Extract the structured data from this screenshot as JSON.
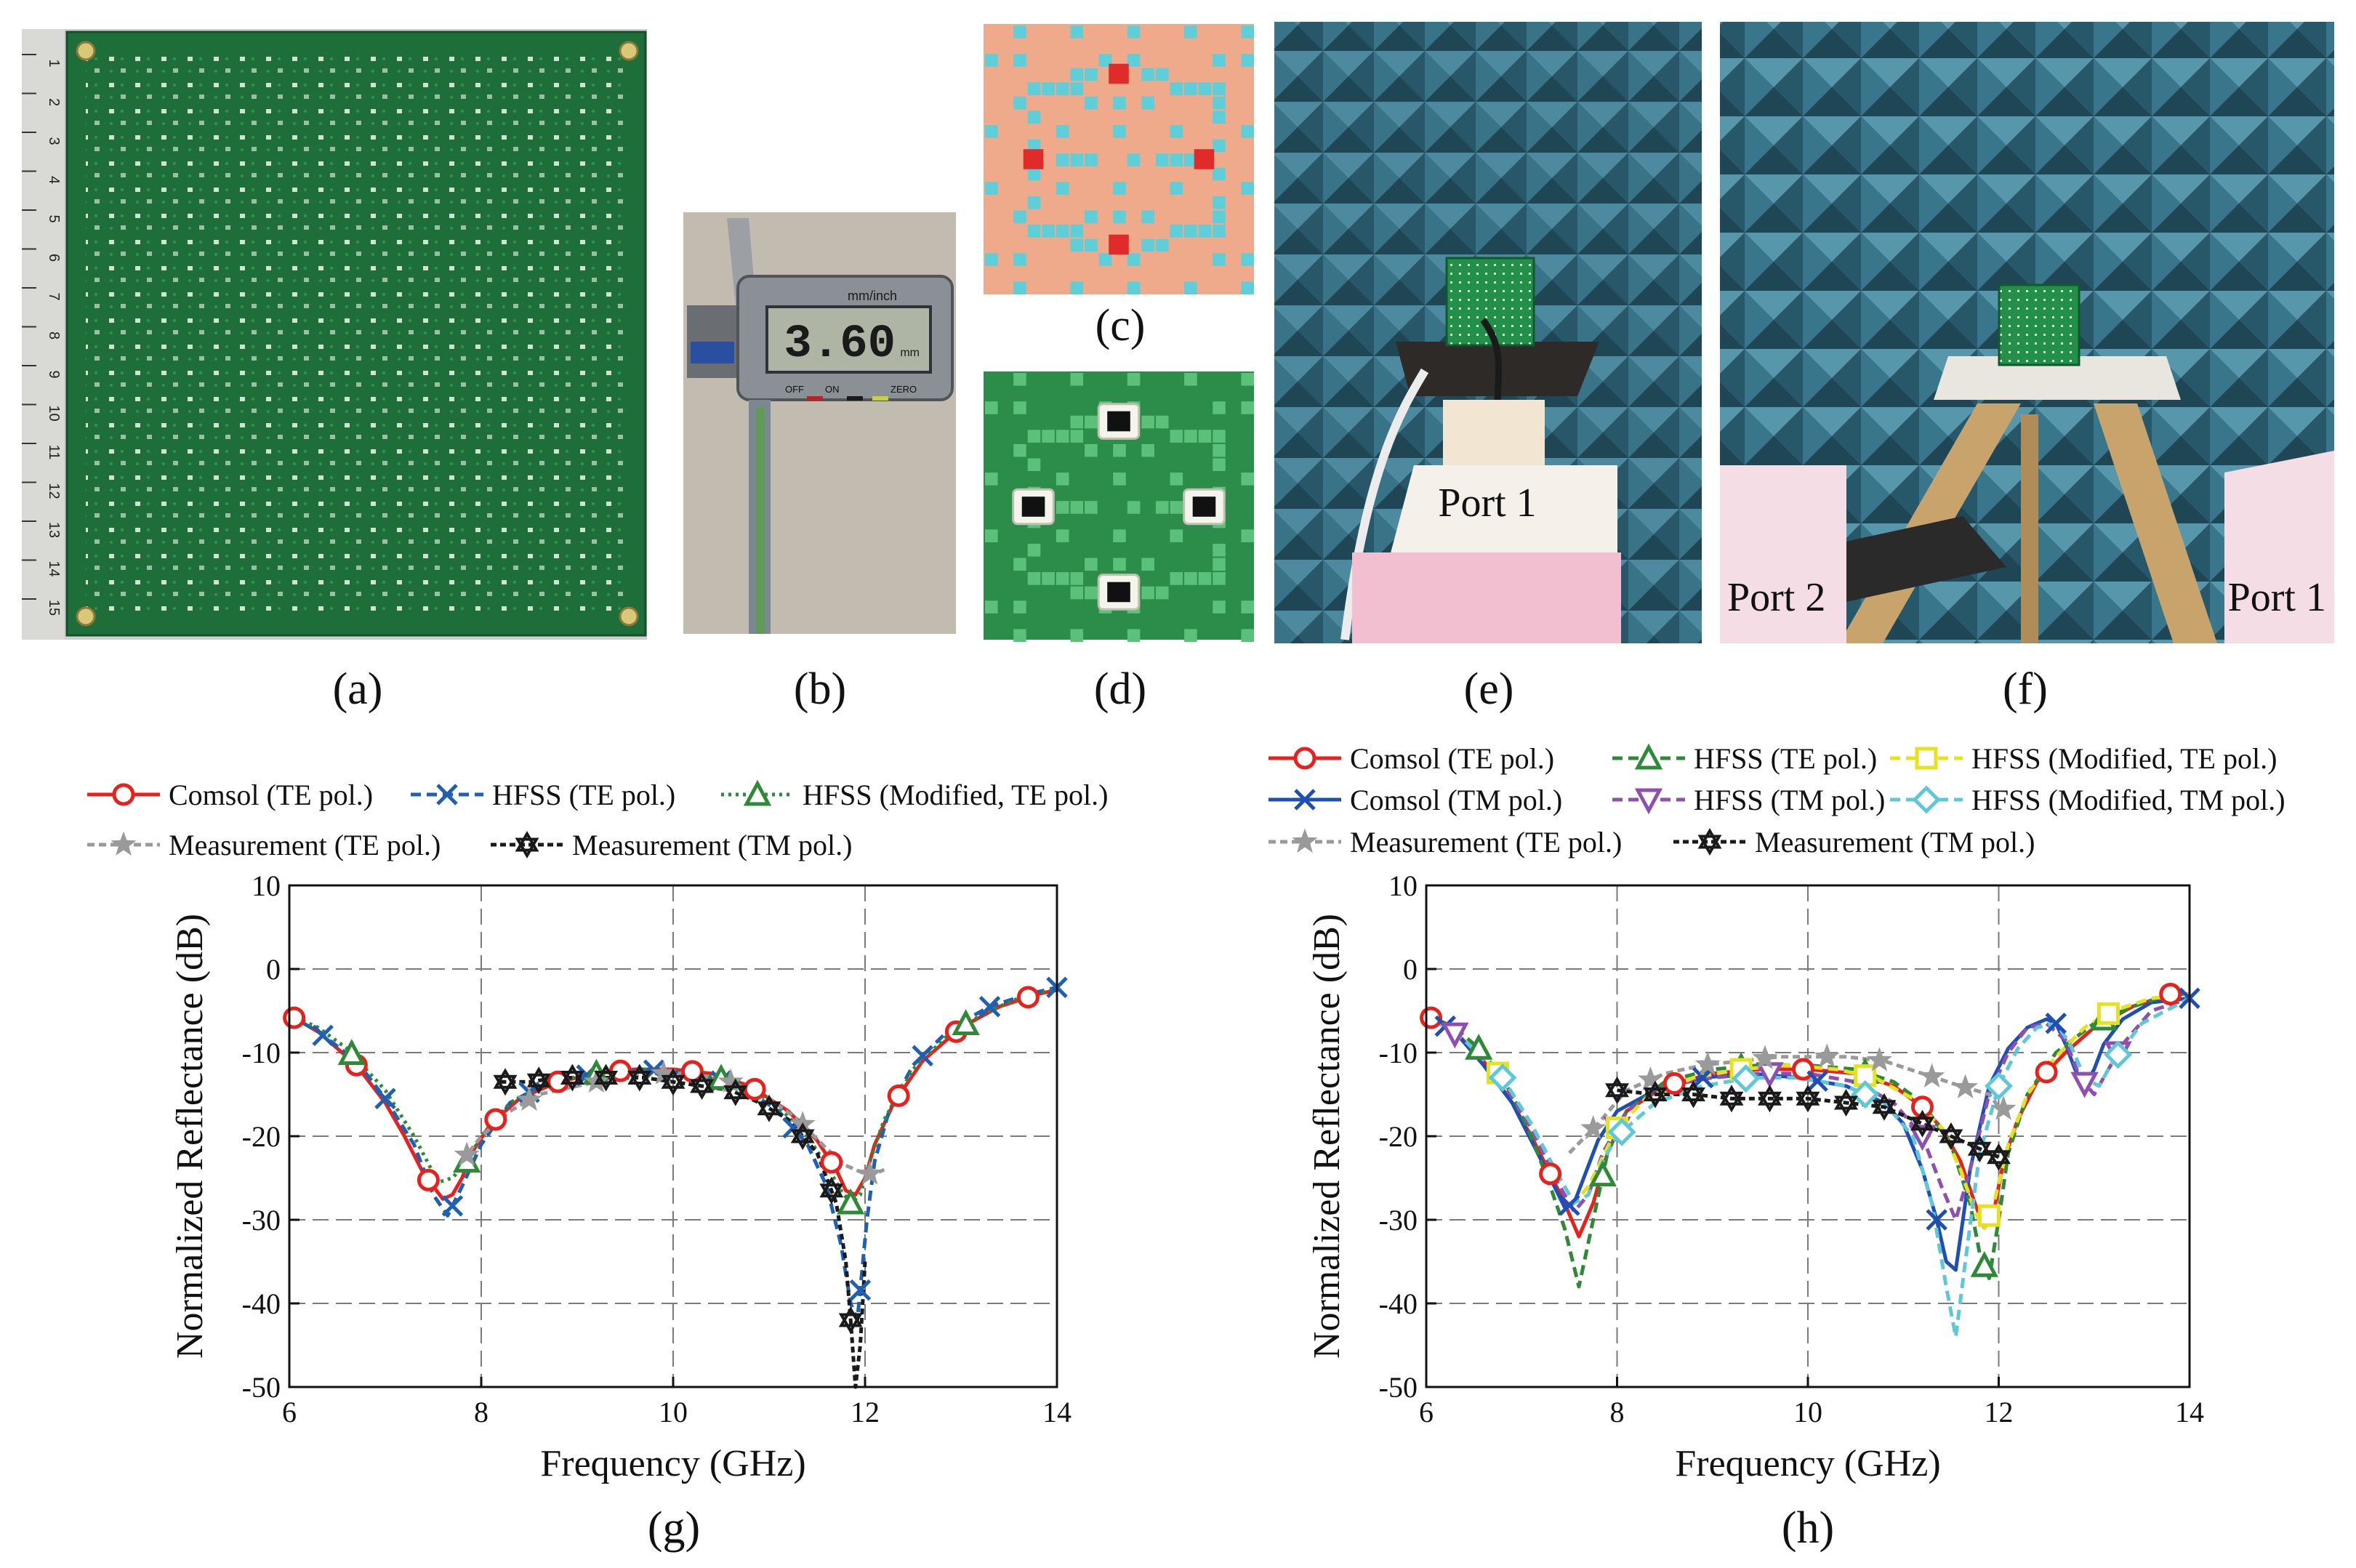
{
  "panels": {
    "a": "(a)",
    "b": "(b)",
    "c": "(c)",
    "d": "(d)",
    "e": "(e)",
    "f": "(f)",
    "g": "(g)",
    "h": "(h)"
  },
  "photos": {
    "caliper_brand": "mm/inch",
    "caliper_reading": "3.60",
    "caliper_unit": "mm",
    "caliper_off": "OFF",
    "caliper_on": "ON",
    "caliper_zero": "ZERO",
    "ruler_ticks": [
      "1",
      "2",
      "3",
      "4",
      "5",
      "6",
      "7",
      "8",
      "9",
      "10",
      "11",
      "12",
      "13",
      "14",
      "15"
    ],
    "port_e": "Port 1",
    "port_f_left": "Port 2",
    "port_f_right": "Port 1"
  },
  "colors": {
    "comsol_te": "#e8211c",
    "comsol_tm": "#1f4fb4",
    "hfss_te": "#2e8a36",
    "hfss_tm": "#8e4fb0",
    "hfss_mod_te": "#e6e21e",
    "hfss_mod_tm": "#5dc9d8",
    "meas_te": "#9a9a9a",
    "meas_tm": "#1a1a1a",
    "hfss_te_g": "#1f5fb4",
    "pcb_green": "#1e6e3a",
    "anechoic": "#3f7f97"
  },
  "chart_data": [
    {
      "id": "g",
      "type": "line",
      "xlabel": "Frequency (GHz)",
      "ylabel": "Normalized Reflectance (dB)",
      "xlim": [
        6,
        14
      ],
      "ylim": [
        -50,
        10
      ],
      "xticks": [
        6,
        8,
        10,
        12,
        14
      ],
      "yticks": [
        10,
        0,
        -10,
        -20,
        -30,
        -40,
        -50
      ],
      "grid": true,
      "legend": [
        "Comsol (TE pol.)",
        "HFSS (TE pol.)",
        "HFSS (Modified, TE pol.)",
        "Measurement (TE pol.)",
        "Measurement (TM pol.)"
      ],
      "series": [
        {
          "name": "Comsol (TE pol.)",
          "color": "#e8211c",
          "dash": "",
          "marker": "circle",
          "x": [
            6.0,
            6.3,
            6.7,
            7.0,
            7.2,
            7.4,
            7.6,
            7.7,
            7.8,
            7.9,
            8.1,
            8.4,
            8.8,
            9.2,
            9.6,
            10.0,
            10.4,
            10.8,
            11.2,
            11.5,
            11.7,
            11.8,
            11.9,
            12.0,
            12.1,
            12.3,
            12.6,
            13.0,
            13.4,
            13.8,
            14.0
          ],
          "y": [
            -5.5,
            -7.5,
            -11.5,
            -16,
            -20,
            -24.5,
            -27.5,
            -27,
            -25,
            -22,
            -18.5,
            -15.5,
            -13.5,
            -12.5,
            -12,
            -12,
            -12.5,
            -14,
            -17,
            -20.5,
            -24,
            -26.5,
            -27,
            -25,
            -21,
            -16,
            -11,
            -7,
            -4.5,
            -3,
            -2.5
          ],
          "marker_x": [
            6.05,
            6.7,
            7.45,
            8.15,
            8.8,
            9.45,
            10.2,
            10.85,
            11.65,
            12.35,
            12.95,
            13.7
          ]
        },
        {
          "name": "HFSS (TE pol.)",
          "color": "#1f5fb4",
          "dash": "14,8",
          "marker": "x",
          "x": [
            6.0,
            6.3,
            6.7,
            7.0,
            7.3,
            7.5,
            7.65,
            7.8,
            8.0,
            8.3,
            8.7,
            9.2,
            9.7,
            10.2,
            10.7,
            11.1,
            11.4,
            11.6,
            11.75,
            11.85,
            11.92,
            11.97,
            12.02,
            12.1,
            12.25,
            12.5,
            12.9,
            13.3,
            13.7,
            14.0
          ],
          "y": [
            -5.5,
            -7.5,
            -11,
            -15.5,
            -21,
            -27,
            -29.5,
            -26,
            -21,
            -16,
            -13.5,
            -12.5,
            -12,
            -12.5,
            -14,
            -17,
            -21,
            -26,
            -33,
            -40,
            -42,
            -36,
            -30,
            -23,
            -17,
            -11.5,
            -7,
            -4.5,
            -3,
            -2.2
          ],
          "marker_x": [
            6.35,
            7.0,
            7.7,
            8.5,
            9.1,
            9.8,
            10.5,
            11.25,
            11.95,
            12.6,
            13.3,
            14.0
          ]
        },
        {
          "name": "HFSS (Modified, TE pol.)",
          "color": "#2e8a36",
          "dash": "4,6",
          "marker": "triangle",
          "x": [
            6.0,
            6.3,
            6.6,
            7.0,
            7.3,
            7.55,
            7.7,
            7.85,
            8.0,
            8.3,
            8.7,
            9.2,
            9.7,
            10.2,
            10.7,
            11.1,
            11.4,
            11.6,
            11.75,
            11.85,
            11.95,
            12.05,
            12.2,
            12.5,
            12.9,
            13.3,
            13.7,
            14.0
          ],
          "y": [
            -5.5,
            -7,
            -9.5,
            -14.5,
            -20,
            -25.5,
            -25,
            -23,
            -20,
            -16,
            -13.5,
            -12.5,
            -12,
            -12.5,
            -13.5,
            -16.5,
            -20,
            -23.5,
            -26.5,
            -28,
            -27,
            -23,
            -18,
            -12,
            -7.5,
            -5,
            -3,
            -2.5
          ],
          "marker_x": [
            6.65,
            7.85,
            9.2,
            10.5,
            11.85,
            13.05
          ]
        },
        {
          "name": "Measurement (TE pol.)",
          "color": "#9a9a9a",
          "dash": "10,6",
          "marker": "star",
          "x": [
            7.8,
            8.0,
            8.3,
            8.6,
            9.0,
            9.4,
            9.8,
            10.2,
            10.6,
            11.0,
            11.3,
            11.6,
            11.8,
            11.9,
            12.0,
            12.1,
            12.2
          ],
          "y": [
            -23,
            -20,
            -17,
            -15,
            -14,
            -13,
            -12.5,
            -12.5,
            -13.5,
            -15.5,
            -18,
            -21.5,
            -23.5,
            -24,
            -24.5,
            -24.5,
            -24
          ],
          "marker_x": [
            7.85,
            8.5,
            9.2,
            9.9,
            10.6,
            11.35,
            12.05
          ]
        },
        {
          "name": "Measurement (TM pol.)",
          "color": "#1a1a1a",
          "dash": "8,5",
          "marker": "star6",
          "x": [
            8.2,
            8.5,
            8.8,
            9.1,
            9.4,
            9.7,
            10.0,
            10.3,
            10.6,
            10.9,
            11.2,
            11.5,
            11.7,
            11.8,
            11.85,
            11.9,
            11.95,
            12.0
          ],
          "y": [
            -13.5,
            -13.5,
            -13,
            -13,
            -13,
            -13,
            -13.5,
            -14,
            -14.5,
            -16,
            -18,
            -22,
            -28,
            -35,
            -42,
            -50,
            -45,
            -35
          ],
          "marker_x": [
            8.25,
            8.6,
            8.95,
            9.3,
            9.65,
            10.0,
            10.3,
            10.65,
            11.0,
            11.35,
            11.65,
            11.85
          ]
        }
      ]
    },
    {
      "id": "h",
      "type": "line",
      "xlabel": "Frequency (GHz)",
      "ylabel": "Normalized Reflectance (dB)",
      "xlim": [
        6,
        14
      ],
      "ylim": [
        -50,
        10
      ],
      "xticks": [
        6,
        8,
        10,
        12,
        14
      ],
      "yticks": [
        10,
        0,
        -10,
        -20,
        -30,
        -40,
        -50
      ],
      "grid": true,
      "legend": [
        "Comsol (TE pol.)",
        "HFSS (TE pol.)",
        "HFSS (Modified, TE pol.)",
        "Comsol (TM pol.)",
        "HFSS (TM pol.)",
        "HFSS (Modified, TM pol.)",
        "Measurement (TE pol.)",
        "Measurement (TM pol.)"
      ],
      "series": [
        {
          "name": "Comsol (TE pol.)",
          "color": "#e8211c",
          "dash": "",
          "marker": "circle",
          "x": [
            6.0,
            6.3,
            6.6,
            6.9,
            7.1,
            7.3,
            7.45,
            7.6,
            7.75,
            7.9,
            8.1,
            8.5,
            9.0,
            9.5,
            10.0,
            10.5,
            10.9,
            11.2,
            11.4,
            11.6,
            11.75,
            11.85,
            11.95,
            12.05,
            12.2,
            12.4,
            12.7,
            13.0,
            13.4,
            13.8,
            14.0
          ],
          "y": [
            -5.5,
            -7.5,
            -11,
            -16,
            -20,
            -24.5,
            -28,
            -32,
            -28,
            -22,
            -17,
            -14,
            -12.5,
            -12,
            -12,
            -12.5,
            -14,
            -16.5,
            -19,
            -23,
            -28,
            -31,
            -29,
            -23,
            -18,
            -13.5,
            -10,
            -7,
            -4.5,
            -3,
            -3
          ],
          "marker_x": [
            6.05,
            7.3,
            8.6,
            9.95,
            11.2,
            12.5,
            13.8
          ]
        },
        {
          "name": "Comsol (TM pol.)",
          "color": "#1f4fb4",
          "dash": "",
          "marker": "x",
          "x": [
            6.0,
            6.3,
            6.6,
            6.9,
            7.1,
            7.3,
            7.45,
            7.55,
            7.65,
            7.8,
            8.0,
            8.4,
            8.9,
            9.4,
            9.9,
            10.4,
            10.8,
            11.0,
            11.2,
            11.35,
            11.45,
            11.55,
            11.7,
            11.9,
            12.1,
            12.3,
            12.5,
            12.6,
            12.7,
            12.8,
            12.9,
            13.0,
            13.1,
            13.3,
            13.6,
            14.0
          ],
          "y": [
            -5.5,
            -7.5,
            -11.5,
            -16,
            -20.5,
            -25,
            -28.5,
            -28,
            -25,
            -20.5,
            -17,
            -14.5,
            -13,
            -12.5,
            -13,
            -14,
            -16,
            -18.5,
            -24,
            -30,
            -35,
            -36,
            -24,
            -14,
            -9.5,
            -7,
            -6,
            -6.5,
            -9,
            -12,
            -14,
            -12,
            -9,
            -6,
            -4,
            -3.5
          ],
          "marker_x": [
            6.2,
            7.5,
            8.9,
            10.1,
            11.35,
            12.6,
            14.0
          ]
        },
        {
          "name": "HFSS (TE pol.)",
          "color": "#2e8a36",
          "dash": "14,8",
          "marker": "triangle",
          "x": [
            6.0,
            6.3,
            6.6,
            6.9,
            7.1,
            7.3,
            7.45,
            7.6,
            7.75,
            7.9,
            8.1,
            8.5,
            9.0,
            9.5,
            10.0,
            10.5,
            10.9,
            11.2,
            11.5,
            11.7,
            11.8,
            11.9,
            12.0,
            12.1,
            12.3,
            12.6,
            13.0,
            13.4,
            13.8,
            14.0
          ],
          "y": [
            -5.5,
            -7,
            -10,
            -15,
            -20,
            -26,
            -31,
            -38,
            -30,
            -22,
            -17,
            -13.5,
            -12,
            -11.5,
            -11.5,
            -12,
            -13.5,
            -16,
            -21,
            -28,
            -34,
            -37,
            -30,
            -22,
            -15,
            -10,
            -6.5,
            -4.5,
            -3,
            -3
          ],
          "marker_x": [
            6.55,
            7.85,
            9.3,
            10.6,
            11.85,
            13.1
          ]
        },
        {
          "name": "HFSS (TM pol.)",
          "color": "#8e4fb0",
          "dash": "14,8",
          "marker": "triangle_down",
          "x": [
            6.0,
            6.4,
            6.8,
            7.1,
            7.35,
            7.55,
            7.7,
            7.85,
            8.1,
            8.5,
            9.0,
            9.5,
            10.0,
            10.5,
            10.9,
            11.2,
            11.4,
            11.55,
            11.7,
            11.9,
            12.1,
            12.3,
            12.5,
            12.7,
            12.85,
            13.0,
            13.15,
            13.3,
            13.6,
            14.0
          ],
          "y": [
            -5.5,
            -8.5,
            -13.5,
            -19,
            -25,
            -29,
            -27,
            -22,
            -17,
            -14,
            -13,
            -12.5,
            -12.5,
            -13.5,
            -16,
            -20,
            -26,
            -30,
            -24,
            -15,
            -10,
            -7,
            -6.5,
            -8.5,
            -13,
            -15,
            -12,
            -9,
            -5,
            -3.5
          ],
          "marker_x": [
            6.3,
            8.0,
            9.6,
            11.2,
            12.9,
            13.25
          ]
        },
        {
          "name": "HFSS (Modified, TE pol.)",
          "color": "#e6e21e",
          "dash": "14,8",
          "marker": "square",
          "x": [
            6.0,
            6.4,
            6.8,
            7.1,
            7.35,
            7.55,
            7.7,
            7.85,
            8.0,
            8.3,
            8.8,
            9.3,
            9.8,
            10.3,
            10.7,
            11.1,
            11.4,
            11.6,
            11.75,
            11.85,
            11.95,
            12.1,
            12.3,
            12.6,
            12.9,
            13.2,
            13.6,
            14.0
          ],
          "y": [
            -5.5,
            -8.5,
            -13,
            -18.5,
            -24,
            -28,
            -26,
            -22.5,
            -19,
            -15.5,
            -13,
            -12,
            -11.5,
            -12,
            -13,
            -15.5,
            -19,
            -24,
            -29,
            -31,
            -28,
            -21,
            -15,
            -10.5,
            -7,
            -5,
            -3.5,
            -3
          ],
          "marker_x": [
            6.75,
            8.0,
            9.3,
            10.6,
            11.9,
            13.15
          ]
        },
        {
          "name": "HFSS (Modified, TM pol.)",
          "color": "#5dc9d8",
          "dash": "14,8",
          "marker": "diamond",
          "x": [
            6.0,
            6.4,
            6.8,
            7.1,
            7.35,
            7.55,
            7.7,
            7.85,
            8.0,
            8.4,
            8.9,
            9.4,
            9.9,
            10.4,
            10.8,
            11.1,
            11.3,
            11.45,
            11.55,
            11.65,
            11.8,
            12.0,
            12.2,
            12.4,
            12.6,
            12.75,
            12.9,
            13.05,
            13.2,
            13.5,
            14.0
          ],
          "y": [
            -5.5,
            -8.5,
            -13,
            -18.5,
            -24,
            -28,
            -27,
            -23,
            -20,
            -16,
            -14,
            -13,
            -13,
            -14,
            -16,
            -20,
            -28,
            -38,
            -44,
            -35,
            -22,
            -14,
            -9.5,
            -7,
            -6.5,
            -9,
            -13,
            -14,
            -11,
            -6.5,
            -3.5
          ],
          "marker_x": [
            6.8,
            8.05,
            9.35,
            10.6,
            12.0,
            13.25
          ]
        },
        {
          "name": "Measurement (TE pol.)",
          "color": "#9a9a9a",
          "dash": "10,6",
          "marker": "star",
          "x": [
            7.5,
            7.8,
            8.1,
            8.5,
            8.9,
            9.3,
            9.7,
            10.0,
            10.4,
            10.8,
            11.2,
            11.6,
            11.9,
            12.0,
            12.1
          ],
          "y": [
            -22,
            -18.5,
            -14.5,
            -12.5,
            -11.5,
            -11,
            -10.5,
            -10.5,
            -10.5,
            -11,
            -12.5,
            -14,
            -15,
            -16.5,
            -17
          ],
          "marker_x": [
            7.75,
            8.35,
            8.95,
            9.55,
            10.2,
            10.75,
            11.3,
            11.65,
            12.05
          ]
        },
        {
          "name": "Measurement (TM pol.)",
          "color": "#1a1a1a",
          "dash": "8,5",
          "marker": "star6",
          "x": [
            8.0,
            8.4,
            8.8,
            9.2,
            9.6,
            10.0,
            10.4,
            10.8,
            11.2,
            11.5,
            11.8,
            12.0
          ],
          "y": [
            -14.5,
            -15,
            -15,
            -15.5,
            -15.5,
            -15.5,
            -16,
            -16.5,
            -18.5,
            -20,
            -21.5,
            -22.5
          ],
          "marker_x": [
            8.0,
            8.4,
            8.8,
            9.2,
            9.6,
            10.0,
            10.4,
            10.8,
            11.2,
            11.5,
            11.8,
            12.0
          ]
        }
      ]
    }
  ]
}
